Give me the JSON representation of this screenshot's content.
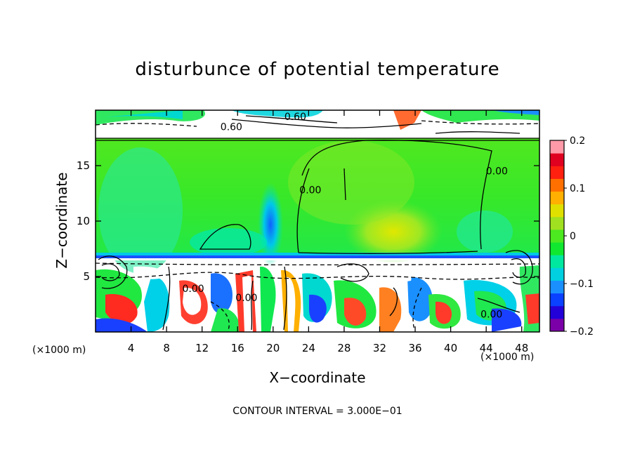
{
  "chart_data": {
    "type": "heatmap",
    "title": "disturbunce of potential temperature",
    "xlabel": "X−coordinate",
    "ylabel": "Z−coordinate",
    "x_unit_left": "(×1000 m)",
    "x_unit_right": "(×1000 m)",
    "xlim": [
      0,
      50
    ],
    "ylim": [
      0,
      20
    ],
    "xticks": [
      4,
      8,
      12,
      16,
      20,
      24,
      28,
      32,
      36,
      40,
      44,
      48
    ],
    "yticks": [
      5,
      10,
      15
    ],
    "colorbar": {
      "range": [
        -0.2,
        0.2
      ],
      "ticks": [
        {
          "value": 0.2,
          "label": "0.2"
        },
        {
          "value": 0.1,
          "label": "0.1"
        },
        {
          "value": 0.0,
          "label": "0"
        },
        {
          "value": -0.1,
          "label": "−0.1"
        },
        {
          "value": -0.2,
          "label": "−0.2"
        }
      ],
      "colors": [
        "#7b00a8",
        "#2200d8",
        "#0a40ff",
        "#1a90ff",
        "#00d0e0",
        "#00e8a0",
        "#10e830",
        "#4ce820",
        "#a0e020",
        "#e0e000",
        "#ffb000",
        "#ff7000",
        "#ff2010",
        "#e00020",
        "#ff9aa8"
      ]
    },
    "contour_labels": [
      {
        "text": "0.60",
        "x": 22.5,
        "y": 19.1
      },
      {
        "text": "0.60",
        "x": 15.3,
        "y": 18.2
      },
      {
        "text": "0.00",
        "x": 24.2,
        "y": 12.5
      },
      {
        "text": "0.00",
        "x": 45.2,
        "y": 14.2
      },
      {
        "text": "0.00",
        "x": 11.0,
        "y": 3.6
      },
      {
        "text": "0.00",
        "x": 17.0,
        "y": 2.8
      },
      {
        "text": "0.00",
        "x": 44.6,
        "y": 1.3
      }
    ],
    "contour_interval": "CONTOUR INTERVAL = 3.000E−01",
    "grid": false,
    "legend": "colorbar-right"
  }
}
